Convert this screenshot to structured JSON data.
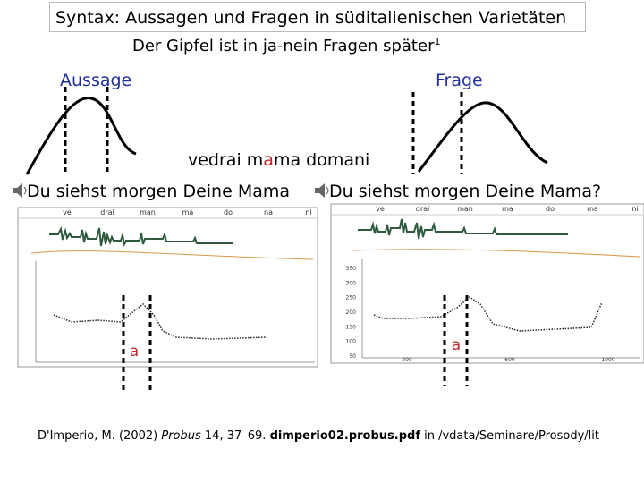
{
  "header": {
    "title": "Syntax: Aussagen und Fragen in süditalienischen Varietäten",
    "subtitle": "Der Gipfel ist in ja-nein Fragen später",
    "subtitle_note": "1"
  },
  "labels": {
    "statement": "Aussage",
    "question": "Frage",
    "example": [
      "vedrai m",
      "a",
      "ma domani"
    ]
  },
  "panels": [
    {
      "caption": "Du siehst morgen Deine Mama",
      "syllables": [
        "ve",
        "drai",
        "man",
        "ma",
        "do",
        "na",
        "ni"
      ],
      "marker": "a"
    },
    {
      "caption": "Du siehst morgen Deine Mama?",
      "syllables": [
        "ve",
        "drai",
        "man",
        "ma",
        "do",
        "ma",
        "ni"
      ],
      "marker": "a",
      "y_labels": [
        "350",
        "300",
        "250",
        "200",
        "150",
        "100",
        "50"
      ],
      "x_labels": [
        "200",
        "600",
        "1000"
      ]
    }
  ],
  "citation": {
    "author": "D'Imperio, M. (2002) ",
    "journal": "Probus",
    "details": " 14, 37–69. ",
    "file": "dimperio02.probus.pdf",
    "path": " in /vdata/Seminare/Prosody/lit"
  }
}
